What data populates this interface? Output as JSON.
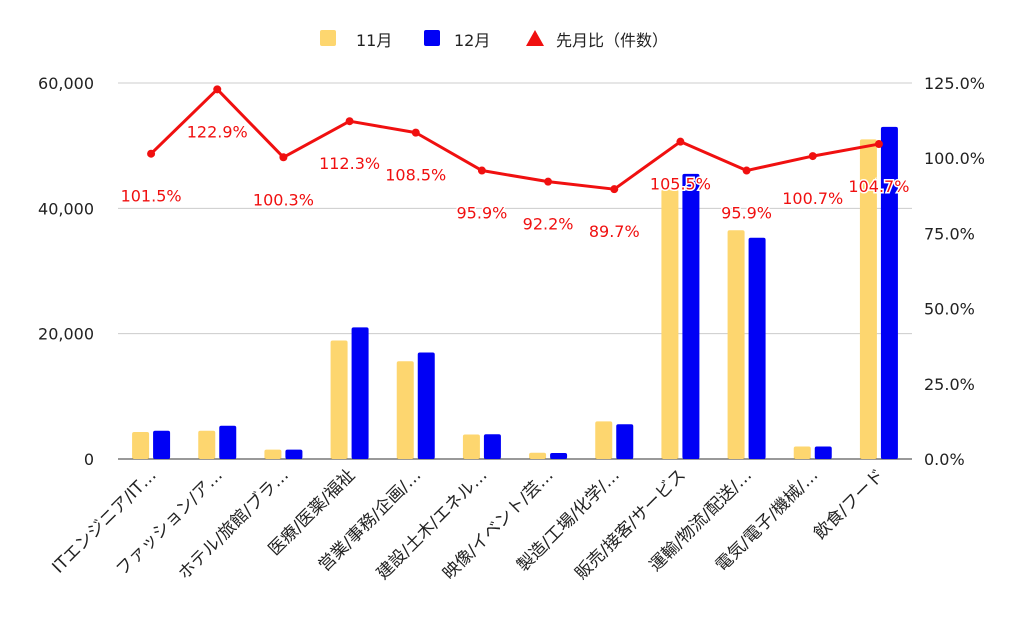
{
  "chart_data": {
    "type": "bar",
    "categories": [
      "ITエンジニア/IT…",
      "ファッション/ア…",
      "ホテル/旅館/ブラ…",
      "医療/医薬/福祉",
      "営業/事務/企画/…",
      "建設/土木/エネル…",
      "映像/イベント/芸…",
      "製造/工場/化学/…",
      "販売/接客/サービス",
      "運輸/物流/配送/…",
      "電気/電子/機械/…",
      "飲食/フード"
    ],
    "series": [
      {
        "name": "11月",
        "color": "#FDD66F",
        "axis": "left",
        "values": [
          4300,
          4500,
          1500,
          18900,
          15600,
          3900,
          1000,
          6000,
          43000,
          36500,
          2000,
          51000
        ]
      },
      {
        "name": "12月",
        "color": "#0000F5",
        "axis": "left",
        "values": [
          4500,
          5300,
          1500,
          21000,
          17000,
          3950,
          950,
          5550,
          45500,
          35300,
          2000,
          53000
        ]
      },
      {
        "name": "先月比（件数）",
        "color": "#F01010",
        "axis": "right",
        "type": "line",
        "values": [
          101.5,
          122.9,
          100.3,
          112.3,
          108.5,
          95.9,
          92.2,
          89.7,
          105.5,
          95.9,
          100.7,
          104.7
        ],
        "labels": [
          "101.5%",
          "122.9%",
          "100.3%",
          "112.3%",
          "108.5%",
          "95.9%",
          "92.2%",
          "89.7%",
          "105.5%",
          "95.9%",
          "100.7%",
          "104.7%"
        ]
      }
    ],
    "left_axis": {
      "min": 0,
      "max": 60000,
      "ticks": [
        0,
        20000,
        40000,
        60000
      ],
      "tick_labels": [
        "0",
        "20,000",
        "40,000",
        "60,000"
      ]
    },
    "right_axis": {
      "min": 0,
      "max": 125,
      "ticks": [
        0,
        25,
        50,
        75,
        100,
        125
      ],
      "tick_labels": [
        "0.0%",
        "25.0%",
        "50.0%",
        "75.0%",
        "100.0%",
        "125.0%"
      ]
    },
    "grid": true,
    "legend_position": "top"
  }
}
